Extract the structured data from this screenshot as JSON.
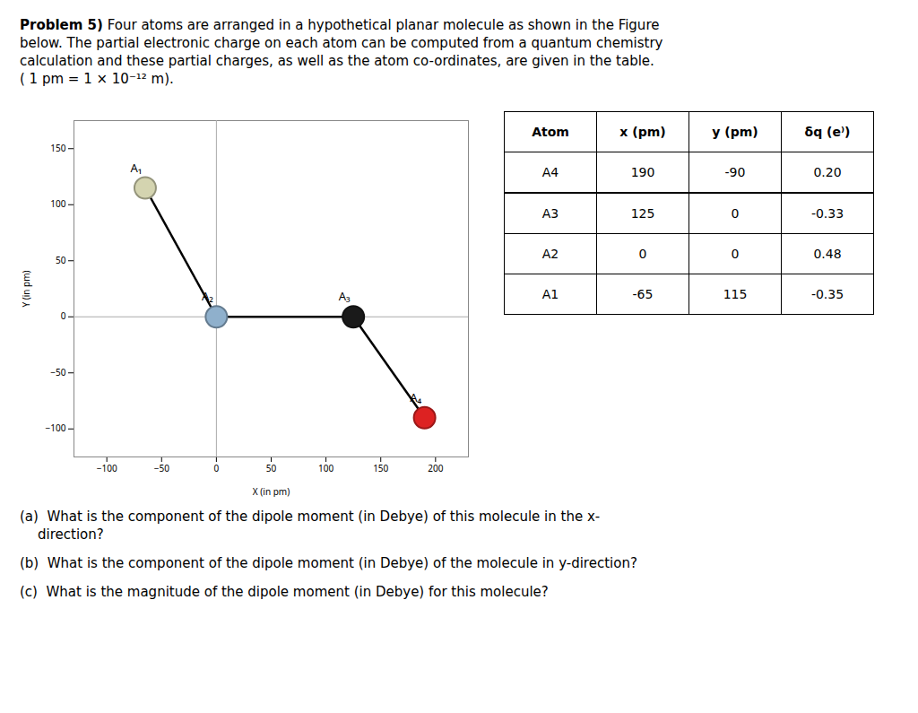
{
  "chart_data": {
    "type": "scatter",
    "title": "Problem 5)",
    "subtitle": [
      " Four atoms are arranged in a hypothetical planar molecule as shown in the Figure",
      "below. The partial electronic charge on each atom can be computed from a quantum chemistry",
      "calculation and these partial charges, as well as the atom co-ordinates, are given in the table.",
      "( 1 pm = 1 × 10⁻¹² m)."
    ],
    "points": [
      {
        "name": "A₁",
        "x": -65,
        "y": 115,
        "color": "#d4d4b0"
      },
      {
        "name": "A₂",
        "x": 0,
        "y": 0,
        "color": "#8fb0cc"
      },
      {
        "name": "A₃",
        "x": 125,
        "y": 0,
        "color": "#1a1a1a"
      },
      {
        "name": "A₄",
        "x": 190,
        "y": -90,
        "color": "#dd2222"
      }
    ],
    "bonds": [
      [
        "A₁",
        "A₂"
      ],
      [
        "A₂",
        "A₃"
      ],
      [
        "A₃",
        "A₄"
      ]
    ],
    "xlabel": "X (in pm)",
    "ylabel": "Y (in pm)",
    "xlim": [
      -130,
      230
    ],
    "ylim": [
      -125,
      175
    ],
    "xticks": [
      -100,
      -50,
      0,
      50,
      100,
      150,
      200
    ],
    "yticks": [
      -100,
      -50,
      0,
      50,
      100,
      150
    ],
    "grid": false,
    "table": {
      "headers": [
        "Atom",
        "x (pm)",
        "y (pm)",
        "δq (e⁾)"
      ],
      "rows": [
        [
          "A4",
          "190",
          "-90",
          "0.20"
        ],
        [
          "A3",
          "125",
          "0",
          "-0.33"
        ],
        [
          "A2",
          "0",
          "0",
          "0.48"
        ],
        [
          "A1",
          "-65",
          "115",
          "-0.35"
        ]
      ]
    },
    "annotations": [
      "(a)  What is the component of the dipole moment (in Debye) of this molecule in the x-",
      "direction?",
      "(b)  What is the component of the dipole moment (in Debye) of the molecule in y-direction?",
      "(c)  What is the magnitude of the dipole moment (in Debye) for this molecule?"
    ]
  }
}
